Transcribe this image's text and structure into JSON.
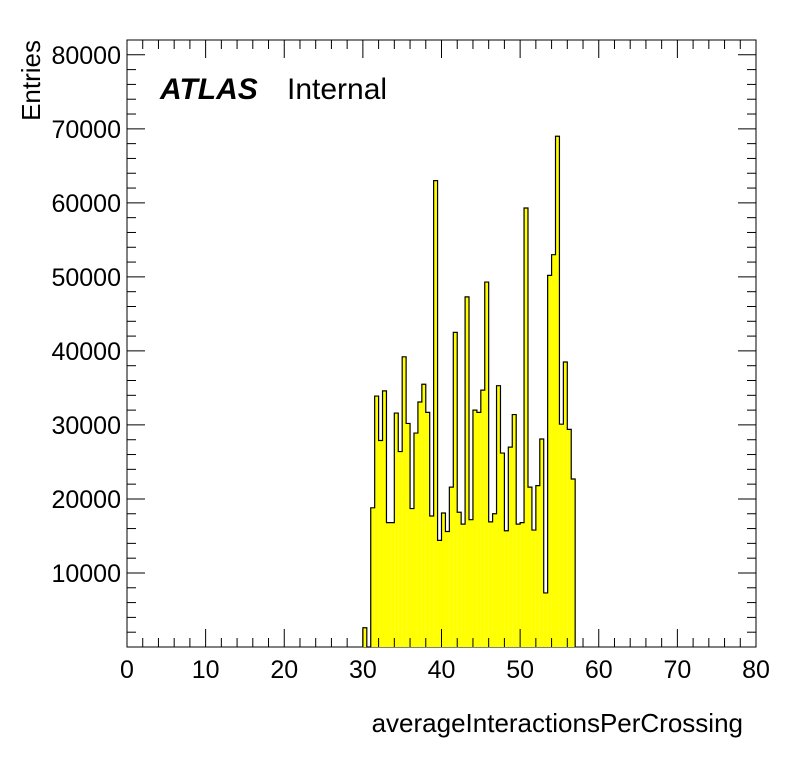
{
  "chart_data": {
    "type": "histogram",
    "xlabel": "averageInteractionsPerCrossing",
    "ylabel": "Entries",
    "xlim": [
      0,
      80
    ],
    "ylim": [
      0,
      82000
    ],
    "x_ticks": [
      "0",
      "10",
      "20",
      "30",
      "40",
      "50",
      "60",
      "70",
      "80"
    ],
    "y_ticks": [
      "10000",
      "20000",
      "30000",
      "40000",
      "50000",
      "60000",
      "70000",
      "80000"
    ],
    "bin_width": 0.5,
    "bin_start": 30,
    "values": [
      2600,
      0,
      18800,
      33900,
      27900,
      34600,
      16800,
      16800,
      31600,
      26400,
      39200,
      30200,
      18700,
      28900,
      33100,
      35500,
      31700,
      17700,
      63000,
      14400,
      18100,
      15600,
      21600,
      42500,
      18200,
      16600,
      47300,
      17200,
      32000,
      31700,
      34700,
      49300,
      16900,
      18000,
      35300,
      26200,
      15700,
      27000,
      31400,
      16600,
      16800,
      59300,
      21600,
      15800,
      21800,
      28100,
      7300,
      50200,
      53000,
      69000,
      30100,
      38500,
      29400,
      22700
    ],
    "fill_color": "#ffff00",
    "line_color": "#000000",
    "label_bold": "ATLAS",
    "label_text": "Internal",
    "grid": false
  }
}
